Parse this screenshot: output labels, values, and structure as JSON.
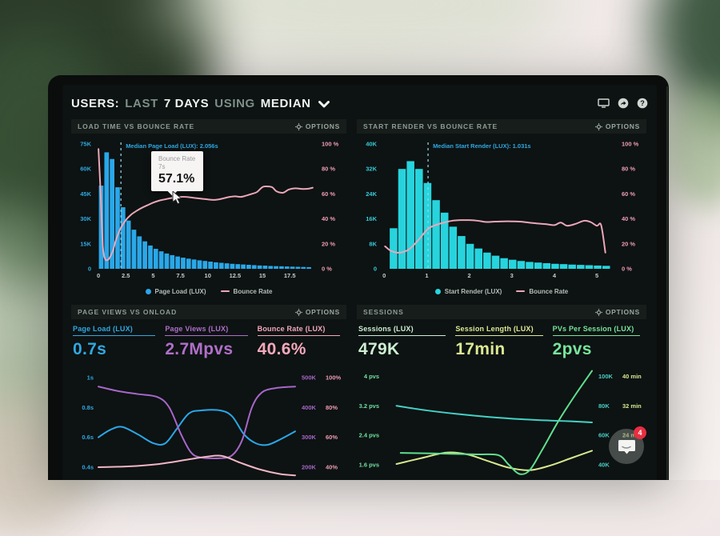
{
  "header": {
    "parts": [
      {
        "text": "USERS:"
      },
      {
        "text": "LAST"
      },
      {
        "text": "7 DAYS"
      },
      {
        "text": "USING"
      },
      {
        "text": "MEDIAN"
      }
    ],
    "icons": [
      "display",
      "share",
      "help"
    ]
  },
  "panels": {
    "load_time": {
      "title": "LOAD TIME VS BOUNCE RATE",
      "options": "OPTIONS",
      "legend_bar": "Page Load (LUX)",
      "legend_line": "Bounce Rate",
      "tooltip": {
        "title": "Bounce Rate",
        "sub": "7s",
        "value": "57.1%"
      }
    },
    "start_render": {
      "title": "START RENDER VS BOUNCE RATE",
      "options": "OPTIONS",
      "legend_bar": "Start Render (LUX)",
      "legend_line": "Bounce Rate"
    },
    "page_views": {
      "title": "PAGE VIEWS VS ONLOAD",
      "options": "OPTIONS",
      "metrics": [
        {
          "label": "Page Load (LUX)",
          "value": "0.7s",
          "color": "#2fa9e2"
        },
        {
          "label": "Page Views (LUX)",
          "value": "2.7Mpvs",
          "color": "#b06fc9"
        },
        {
          "label": "Bounce Rate (LUX)",
          "value": "40.6%",
          "color": "#f3a9bc"
        }
      ]
    },
    "sessions": {
      "title": "SESSIONS",
      "options": "OPTIONS",
      "metrics": [
        {
          "label": "Sessions (LUX)",
          "value": "479K",
          "color": "#cdeed2"
        },
        {
          "label": "Session Length (LUX)",
          "value": "17min",
          "color": "#dcea93"
        },
        {
          "label": "PVs Per Session (LUX)",
          "value": "2pvs",
          "color": "#77e49c"
        }
      ]
    }
  },
  "messenger": {
    "badge": "4",
    "icon": "chat-bubble"
  },
  "chart_data": [
    {
      "type": "bar",
      "title": "LOAD TIME VS BOUNCE RATE",
      "bar_series": "Page Load (LUX)",
      "bar_color": "#2aa7e8",
      "bins_start": 0,
      "bin_width": 0.5,
      "values_k": [
        50,
        70,
        66,
        49,
        37,
        29,
        23.5,
        19.5,
        16.5,
        14,
        12,
        10.5,
        9.2,
        8.2,
        7.4,
        6.7,
        6.1,
        5.6,
        5.1,
        4.7,
        4.3,
        3.9,
        3.6,
        3.3,
        3.0,
        2.8,
        2.6,
        2.4,
        2.2,
        2.0,
        1.9,
        1.7,
        1.6,
        1.5,
        1.4,
        1.3,
        1.2,
        1.1,
        1.0
      ],
      "ylim_left": [
        0,
        75
      ],
      "yticks_left": [
        "0",
        "15K",
        "30K",
        "45K",
        "60K",
        "75K"
      ],
      "ylim_right": [
        0,
        100
      ],
      "yticks_right": [
        "0 %",
        "20 %",
        "40 %",
        "60 %",
        "80 %",
        "100 %"
      ],
      "xticks": [
        "0",
        "2.5",
        "5",
        "7.5",
        "10",
        "12.5",
        "15",
        "17.5"
      ],
      "xlim": [
        -0.3,
        19.9
      ],
      "line_series": "Bounce Rate",
      "line_color": "#eaa7b9",
      "line_points": [
        [
          0,
          96
        ],
        [
          0.2,
          60
        ],
        [
          0.4,
          18
        ],
        [
          0.6,
          8
        ],
        [
          0.8,
          7
        ],
        [
          1.0,
          8.5
        ],
        [
          1.3,
          14
        ],
        [
          1.6,
          23
        ],
        [
          2.0,
          32
        ],
        [
          2.5,
          39
        ],
        [
          3.0,
          43.5
        ],
        [
          3.5,
          46.5
        ],
        [
          4.0,
          49
        ],
        [
          4.5,
          51
        ],
        [
          5.0,
          53
        ],
        [
          5.5,
          54.5
        ],
        [
          6.0,
          55.5
        ],
        [
          6.5,
          56.4
        ],
        [
          7.0,
          57.1
        ],
        [
          7.5,
          57.6
        ],
        [
          8.0,
          57.6
        ],
        [
          8.5,
          57.1
        ],
        [
          9.0,
          56.6
        ],
        [
          9.5,
          56.1
        ],
        [
          10.0,
          55.6
        ],
        [
          10.5,
          55.2
        ],
        [
          11.0,
          55.6
        ],
        [
          11.5,
          56.6
        ],
        [
          12.0,
          57.6
        ],
        [
          12.5,
          58.1
        ],
        [
          13.0,
          57.6
        ],
        [
          13.5,
          58.6
        ],
        [
          14.0,
          60
        ],
        [
          14.5,
          61.5
        ],
        [
          15.0,
          65.5
        ],
        [
          15.4,
          66
        ],
        [
          15.9,
          65.3
        ],
        [
          16.3,
          62
        ],
        [
          16.9,
          61
        ],
        [
          17.4,
          63.5
        ],
        [
          18.0,
          64.5
        ],
        [
          18.6,
          64
        ],
        [
          19.2,
          64.2
        ],
        [
          19.6,
          65
        ]
      ],
      "median": {
        "x": 2.056,
        "label": "Median Page Load (LUX): 2.056s",
        "color": "#2fa9e2"
      },
      "tooltip_point": [
        7,
        57.1
      ],
      "tick_colors": {
        "left": "#2fa9e2",
        "right": "#ef9db4",
        "x": "#c6cfcb"
      }
    },
    {
      "type": "bar",
      "title": "START RENDER VS BOUNCE RATE",
      "bar_series": "Start Render (LUX)",
      "bar_color": "#27d4dd",
      "bins_start": 0.12,
      "bin_width": 0.2,
      "values_k": [
        13,
        32,
        34.5,
        32,
        27.5,
        22,
        18,
        13.5,
        10.5,
        8,
        6.5,
        5.2,
        4.2,
        3.4,
        2.9,
        2.5,
        2.2,
        2.0,
        1.8,
        1.6,
        1.5,
        1.35,
        1.25,
        1.15,
        1.05,
        0.95
      ],
      "ylim_left": [
        0,
        40
      ],
      "yticks_left": [
        "0",
        "8K",
        "16K",
        "24K",
        "32K",
        "40K"
      ],
      "ylim_right": [
        0,
        100
      ],
      "yticks_right": [
        "0 %",
        "20 %",
        "40 %",
        "60 %",
        "80 %",
        "100 %"
      ],
      "xticks": [
        "0",
        "1",
        "2",
        "3",
        "4",
        "5"
      ],
      "xlim": [
        -0.08,
        5.45
      ],
      "line_series": "Bounce Rate",
      "line_color": "#eaa7b9",
      "line_points": [
        [
          0.02,
          18
        ],
        [
          0.15,
          14.5
        ],
        [
          0.3,
          13
        ],
        [
          0.45,
          13.5
        ],
        [
          0.6,
          16
        ],
        [
          0.75,
          21
        ],
        [
          0.9,
          27
        ],
        [
          1.0,
          31
        ],
        [
          1.1,
          33.5
        ],
        [
          1.25,
          35.5
        ],
        [
          1.4,
          37
        ],
        [
          1.6,
          38.5
        ],
        [
          1.8,
          39
        ],
        [
          2.0,
          39
        ],
        [
          2.2,
          38.5
        ],
        [
          2.4,
          37.5
        ],
        [
          2.6,
          37.8
        ],
        [
          2.8,
          38
        ],
        [
          3.0,
          38
        ],
        [
          3.2,
          37.8
        ],
        [
          3.4,
          37
        ],
        [
          3.6,
          36.3
        ],
        [
          3.8,
          35.8
        ],
        [
          4.0,
          35
        ],
        [
          4.15,
          37
        ],
        [
          4.3,
          34.5
        ],
        [
          4.5,
          36
        ],
        [
          4.7,
          38.5
        ],
        [
          4.85,
          37.5
        ],
        [
          5.0,
          34.5
        ],
        [
          5.1,
          35
        ],
        [
          5.2,
          13
        ]
      ],
      "median": {
        "x": 1.031,
        "label": "Median Start Render (LUX): 1.031s",
        "color": "#2fa9e2"
      },
      "tick_colors": {
        "left": "#35cdd9",
        "right": "#ef9db4",
        "x": "#c6cfcb"
      }
    },
    {
      "type": "line",
      "title": "PAGE VIEWS VS ONLOAD",
      "yticks_left": [
        "1s",
        "0.8s",
        "0.6s",
        "0.4s"
      ],
      "yticks_right": [
        [
          "500K",
          "100%"
        ],
        [
          "400K",
          "80%"
        ],
        [
          "300K",
          "60%"
        ],
        [
          "200K",
          "40%"
        ]
      ],
      "ylim": [
        0.33,
        1.07
      ],
      "tick_colors": {
        "left": "#2fa9e2",
        "right1": "#a667c8",
        "right2": "#ef9db4"
      },
      "series": [
        {
          "name": "Page Load (LUX)",
          "color": "#2aa7e8",
          "points": [
            [
              0,
              0.6
            ],
            [
              0.06,
              0.65
            ],
            [
              0.12,
              0.67
            ],
            [
              0.2,
              0.62
            ],
            [
              0.28,
              0.56
            ],
            [
              0.34,
              0.56
            ],
            [
              0.4,
              0.66
            ],
            [
              0.46,
              0.76
            ],
            [
              0.52,
              0.78
            ],
            [
              0.62,
              0.78
            ],
            [
              0.68,
              0.74
            ],
            [
              0.74,
              0.62
            ],
            [
              0.8,
              0.56
            ],
            [
              0.86,
              0.55
            ],
            [
              0.93,
              0.59
            ],
            [
              1,
              0.64
            ]
          ]
        },
        {
          "name": "Page Views (LUX)",
          "color": "#a667c8",
          "points": [
            [
              0,
              0.94
            ],
            [
              0.1,
              0.91
            ],
            [
              0.2,
              0.89
            ],
            [
              0.3,
              0.87
            ],
            [
              0.36,
              0.8
            ],
            [
              0.42,
              0.62
            ],
            [
              0.47,
              0.5
            ],
            [
              0.52,
              0.465
            ],
            [
              0.62,
              0.46
            ],
            [
              0.68,
              0.48
            ],
            [
              0.73,
              0.58
            ],
            [
              0.78,
              0.8
            ],
            [
              0.83,
              0.9
            ],
            [
              0.9,
              0.93
            ],
            [
              1,
              0.94
            ]
          ]
        },
        {
          "name": "Bounce Rate (LUX)",
          "color": "#f0b6c4",
          "points": [
            [
              0,
              0.4
            ],
            [
              0.15,
              0.405
            ],
            [
              0.3,
              0.42
            ],
            [
              0.45,
              0.45
            ],
            [
              0.55,
              0.47
            ],
            [
              0.63,
              0.475
            ],
            [
              0.72,
              0.43
            ],
            [
              0.82,
              0.385
            ],
            [
              0.92,
              0.355
            ],
            [
              1,
              0.345
            ]
          ]
        }
      ]
    },
    {
      "type": "line",
      "title": "SESSIONS",
      "yticks_left": [
        "4 pvs",
        "3.2 pvs",
        "2.4 pvs",
        "1.6 pvs"
      ],
      "yticks_right": [
        [
          "100K",
          "40 min"
        ],
        [
          "80K",
          "32 min"
        ],
        [
          "60K",
          "24 min"
        ],
        [
          "40K",
          ""
        ]
      ],
      "ylim": [
        1.25,
        4.25
      ],
      "tick_colors": {
        "left": "#6fe0a0",
        "right1": "#49d0c5",
        "right2": "#d6e88f"
      },
      "series": [
        {
          "name": "Sessions (LUX)",
          "color": "#43d2c5",
          "points": [
            [
              0.06,
              3.2
            ],
            [
              0.2,
              3.08
            ],
            [
              0.35,
              2.98
            ],
            [
              0.5,
              2.9
            ],
            [
              0.65,
              2.84
            ],
            [
              0.8,
              2.8
            ],
            [
              0.9,
              2.78
            ],
            [
              1,
              2.75
            ]
          ]
        },
        {
          "name": "Session Length (LUX)",
          "color": "#d6e88f",
          "points": [
            [
              0.06,
              1.62
            ],
            [
              0.18,
              1.78
            ],
            [
              0.3,
              1.93
            ],
            [
              0.4,
              1.88
            ],
            [
              0.5,
              1.7
            ],
            [
              0.6,
              1.52
            ],
            [
              0.7,
              1.45
            ],
            [
              0.8,
              1.58
            ],
            [
              0.9,
              1.78
            ],
            [
              1,
              1.98
            ]
          ]
        },
        {
          "name": "PVs Per Session (LUX)",
          "color": "#5fdf8e",
          "points": [
            [
              0.08,
              1.92
            ],
            [
              0.3,
              1.9
            ],
            [
              0.45,
              1.88
            ],
            [
              0.55,
              1.86
            ],
            [
              0.6,
              1.6
            ],
            [
              0.65,
              1.35
            ],
            [
              0.7,
              1.45
            ],
            [
              0.76,
              2.0
            ],
            [
              0.84,
              2.8
            ],
            [
              0.92,
              3.5
            ],
            [
              1,
              4.15
            ]
          ]
        }
      ]
    }
  ]
}
